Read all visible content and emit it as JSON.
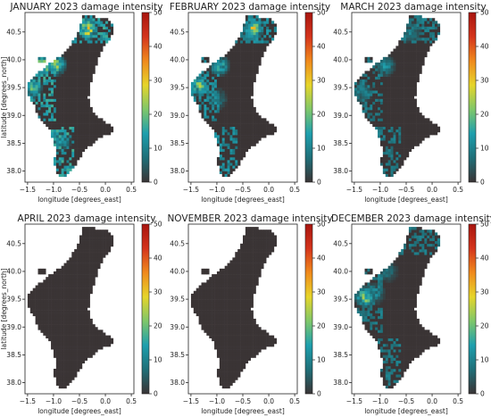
{
  "chart_data": [
    {
      "type": "heatmap",
      "title": "JANUARY 2023 damage intensity",
      "xlabel": "longitude [degrees_east]",
      "ylabel": "latitude [degrees_north]",
      "xlim": [
        -1.55,
        0.55
      ],
      "ylim": [
        37.8,
        40.85
      ],
      "xticks": [
        "−1.5",
        "−1.0",
        "−0.5",
        "0.0",
        "0.5"
      ],
      "yticks": [
        "38.0",
        "38.5",
        "39.0",
        "39.5",
        "40.0",
        "40.5"
      ],
      "colorbar": {
        "min": 0,
        "max": 50,
        "ticks": [
          "0",
          "10",
          "20",
          "30",
          "40",
          "50"
        ]
      },
      "hotspots": [
        {
          "lon": -1.2,
          "lat": 39.9,
          "value": 28
        },
        {
          "lon": -0.95,
          "lat": 39.92,
          "value": 25
        },
        {
          "lon": -0.35,
          "lat": 40.55,
          "value": 30
        },
        {
          "lon": -1.4,
          "lat": 39.5,
          "value": 18
        },
        {
          "lon": -0.85,
          "lat": 38.55,
          "value": 12
        }
      ]
    },
    {
      "type": "heatmap",
      "title": "FEBRUARY 2023 damage intensity",
      "xlabel": "longitude [degrees_east]",
      "ylabel": "",
      "xlim": [
        -1.55,
        0.55
      ],
      "ylim": [
        37.8,
        40.85
      ],
      "xticks": [
        "−1.5",
        "−1.0",
        "−0.5",
        "0.0",
        "0.5"
      ],
      "yticks": [
        "38.0",
        "38.5",
        "39.0",
        "39.5",
        "40.0",
        "40.5"
      ],
      "colorbar": {
        "min": 0,
        "max": 50,
        "ticks": [
          "0",
          "10",
          "20",
          "30",
          "40",
          "50"
        ]
      },
      "hotspots": [
        {
          "lon": -0.3,
          "lat": 40.55,
          "value": 27
        },
        {
          "lon": -1.35,
          "lat": 39.55,
          "value": 22
        },
        {
          "lon": -0.95,
          "lat": 39.9,
          "value": 18
        },
        {
          "lon": -1.0,
          "lat": 39.3,
          "value": 10
        }
      ]
    },
    {
      "type": "heatmap",
      "title": "MARCH 2023 damage intensity",
      "xlabel": "longitude [degrees_east]",
      "ylabel": "",
      "xlim": [
        -1.55,
        0.55
      ],
      "ylim": [
        37.8,
        40.85
      ],
      "xticks": [
        "−1.5",
        "−1.0",
        "−0.5",
        "0.0",
        "0.5"
      ],
      "yticks": [
        "38.0",
        "38.5",
        "39.0",
        "39.5",
        "40.0",
        "40.5"
      ],
      "colorbar": {
        "min": 0,
        "max": 50,
        "ticks": [
          "0",
          "10",
          "20",
          "30",
          "40",
          "50"
        ]
      },
      "hotspots": [
        {
          "lon": -0.9,
          "lat": 39.9,
          "value": 12
        },
        {
          "lon": -1.35,
          "lat": 39.4,
          "value": 11
        },
        {
          "lon": -0.4,
          "lat": 40.5,
          "value": 9
        }
      ]
    },
    {
      "type": "heatmap",
      "title": "APRIL 2023 damage intensity",
      "xlabel": "longitude [degrees_east]",
      "ylabel": "latitude [degrees_north]",
      "xlim": [
        -1.55,
        0.55
      ],
      "ylim": [
        37.8,
        40.85
      ],
      "xticks": [
        "−1.5",
        "−1.0",
        "−0.5",
        "0.0",
        "0.5"
      ],
      "yticks": [
        "38.0",
        "38.5",
        "39.0",
        "39.5",
        "40.0",
        "40.5"
      ],
      "colorbar": {
        "min": 0,
        "max": 50,
        "ticks": [
          "0",
          "10",
          "20",
          "30",
          "40",
          "50"
        ]
      },
      "hotspots": []
    },
    {
      "type": "heatmap",
      "title": "NOVEMBER 2023 damage intensity",
      "xlabel": "longitude [degrees_east]",
      "ylabel": "",
      "xlim": [
        -1.55,
        0.55
      ],
      "ylim": [
        37.8,
        40.85
      ],
      "xticks": [
        "−1.5",
        "−1.0",
        "−0.5",
        "0.0",
        "0.5"
      ],
      "yticks": [
        "38.0",
        "38.5",
        "39.0",
        "39.5",
        "40.0",
        "40.5"
      ],
      "colorbar": {
        "min": 0,
        "max": 50,
        "ticks": [
          "0",
          "10",
          "20",
          "30",
          "40",
          "50"
        ]
      },
      "hotspots": []
    },
    {
      "type": "heatmap",
      "title": "DECEMBER 2023 damage intensity",
      "xlabel": "longitude [degrees_east]",
      "ylabel": "",
      "xlim": [
        -1.55,
        0.55
      ],
      "ylim": [
        37.8,
        40.85
      ],
      "xticks": [
        "−1.5",
        "−1.0",
        "−0.5",
        "0.0",
        "0.5"
      ],
      "yticks": [
        "38.0",
        "38.5",
        "39.0",
        "39.5",
        "40.0",
        "40.5"
      ],
      "colorbar": {
        "min": 0,
        "max": 50,
        "ticks": [
          "0",
          "10",
          "20",
          "30",
          "40",
          "50"
        ]
      },
      "hotspots": [
        {
          "lon": -1.3,
          "lat": 39.55,
          "value": 26
        },
        {
          "lon": -1.1,
          "lat": 39.6,
          "value": 12
        },
        {
          "lon": -0.85,
          "lat": 40.0,
          "value": 8
        }
      ]
    }
  ],
  "colors": {
    "land": "#3a3435",
    "colormap": [
      "#3a3435",
      "#1f6f78",
      "#1e9fae",
      "#7fc76a",
      "#e6d52a",
      "#f08a1c",
      "#d4341c",
      "#a8150f"
    ]
  }
}
